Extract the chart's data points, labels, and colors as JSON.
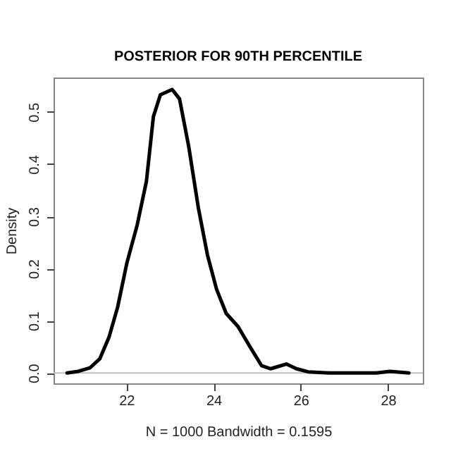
{
  "chart_data": {
    "type": "line",
    "title": "POSTERIOR FOR 90TH PERCENTILE",
    "xlabel": "N = 1000   Bandwidth = 0.1595",
    "ylabel": "Density",
    "x": [
      20.64,
      20.9,
      21.17,
      21.39,
      21.6,
      21.8,
      22.01,
      22.25,
      22.46,
      22.62,
      22.78,
      23.05,
      23.22,
      23.43,
      23.65,
      23.86,
      24.07,
      24.29,
      24.56,
      24.83,
      25.1,
      25.31,
      25.67,
      25.9,
      26.17,
      26.65,
      27.73,
      28.05,
      28.48
    ],
    "values": [
      0,
      0.003,
      0.01,
      0.027,
      0.068,
      0.126,
      0.21,
      0.284,
      0.367,
      0.491,
      0.533,
      0.543,
      0.525,
      0.434,
      0.317,
      0.226,
      0.16,
      0.114,
      0.089,
      0.051,
      0.014,
      0.008,
      0.017,
      0.008,
      0.002,
      0,
      0,
      0.003,
      0
    ],
    "color": "#000000",
    "xlim": [
      20.33,
      28.8
    ],
    "ylim": [
      -0.02,
      0.566
    ],
    "xticks": [
      22,
      24,
      26,
      28
    ],
    "yticks": [
      {
        "value": 0,
        "label": "0.0"
      },
      0.1,
      0.2,
      0.3,
      0.4,
      0.5
    ],
    "ref_lines": [
      {
        "axis": "y",
        "value": 0,
        "color": "#bebebe"
      }
    ]
  }
}
